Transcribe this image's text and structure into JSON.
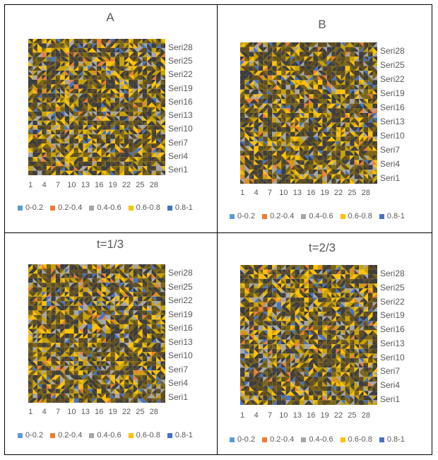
{
  "legend_colors": [
    "#5b9bd5",
    "#ed7d31",
    "#a5a5a5",
    "#ffc000",
    "#4472c4"
  ],
  "chart_data": [
    {
      "type": "heatmap",
      "title": "A",
      "x_ticks": [
        "1",
        "4",
        "7",
        "10",
        "13",
        "16",
        "19",
        "22",
        "25",
        "28"
      ],
      "y_ticks": [
        "Seri1",
        "Seri4",
        "Seri7",
        "Seri10",
        "Seri13",
        "Seri16",
        "Seri19",
        "Seri22",
        "Seri25",
        "Seri28"
      ],
      "legend": [
        "0-0.2",
        "0.2-0.4",
        "0.4-0.6",
        "0.6-0.8",
        "0.8-1"
      ],
      "grid_size": 30,
      "value_range": [
        0,
        1
      ]
    },
    {
      "type": "heatmap",
      "title": "B",
      "x_ticks": [
        "1",
        "4",
        "7",
        "10",
        "13",
        "16",
        "19",
        "22",
        "25",
        "28"
      ],
      "y_ticks": [
        "Seri1",
        "Seri4",
        "Seri7",
        "Seri10",
        "Seri13",
        "Seri16",
        "Seri19",
        "Seri22",
        "Seri25",
        "Seri28"
      ],
      "legend": [
        "0-0.2",
        "0.2-0.4",
        "0.4-0.6",
        "0.6-0.8",
        "0.8-1"
      ],
      "grid_size": 30,
      "value_range": [
        0,
        1
      ]
    },
    {
      "type": "heatmap",
      "title": "t=1/3",
      "x_ticks": [
        "1",
        "4",
        "7",
        "10",
        "13",
        "16",
        "19",
        "22",
        "25",
        "28"
      ],
      "y_ticks": [
        "Seri1",
        "Seri4",
        "Seri7",
        "Seri10",
        "Seri13",
        "Seri16",
        "Seri19",
        "Seri22",
        "Seri25",
        "Seri28"
      ],
      "legend": [
        "0-0.2",
        "0.2-0.4",
        "0.4-0.6",
        "0.6-0.8",
        "0.8-1"
      ],
      "grid_size": 30,
      "value_range": [
        0,
        1
      ]
    },
    {
      "type": "heatmap",
      "title": "t=2/3",
      "x_ticks": [
        "1",
        "4",
        "7",
        "10",
        "13",
        "16",
        "19",
        "22",
        "25",
        "28"
      ],
      "y_ticks": [
        "Seri1",
        "Seri4",
        "Seri7",
        "Seri10",
        "Seri13",
        "Seri16",
        "Seri19",
        "Seri22",
        "Seri25",
        "Seri28"
      ],
      "legend": [
        "0-0.2",
        "0.2-0.4",
        "0.4-0.6",
        "0.6-0.8",
        "0.8-1"
      ],
      "grid_size": 30,
      "value_range": [
        0,
        1
      ]
    }
  ]
}
